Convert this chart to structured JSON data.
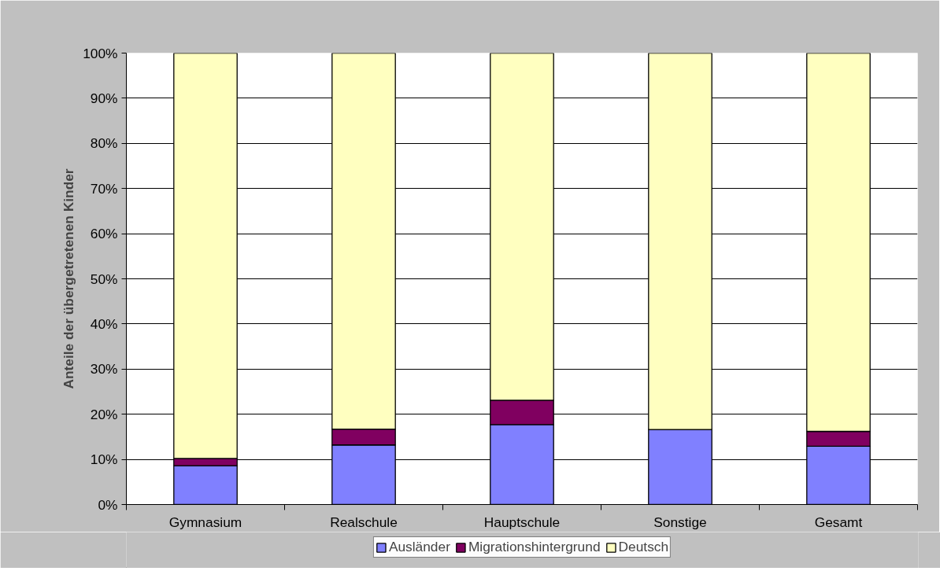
{
  "chart_data": {
    "type": "bar",
    "stacked": true,
    "ylabel": "Anteile der übergetretenen Kinder",
    "categories": [
      "Gymnasium",
      "Realschule",
      "Hauptschule",
      "Sonstige",
      "Gesamt"
    ],
    "series": [
      {
        "name": "Ausländer",
        "color": "#8080ff",
        "values": [
          8.6,
          13.2,
          17.7,
          16.6,
          12.9
        ]
      },
      {
        "name": "Migrationshintergrund",
        "color": "#800060",
        "values": [
          1.6,
          3.5,
          5.4,
          0,
          3.3
        ]
      },
      {
        "name": "Deutsch",
        "color": "#ffffc0",
        "values": [
          89.8,
          83.3,
          76.9,
          83.4,
          83.8
        ]
      }
    ],
    "ylim": [
      0,
      100
    ],
    "yticks": [
      {
        "value": 0,
        "label": "0%"
      },
      {
        "value": 10,
        "label": "10%"
      },
      {
        "value": 20,
        "label": "20%"
      },
      {
        "value": 30,
        "label": "30%"
      },
      {
        "value": 40,
        "label": "40%"
      },
      {
        "value": 50,
        "label": "50%"
      },
      {
        "value": 60,
        "label": "60%"
      },
      {
        "value": 70,
        "label": "70%"
      },
      {
        "value": 80,
        "label": "80%"
      },
      {
        "value": 90,
        "label": "90%"
      },
      {
        "value": 100,
        "label": "100%"
      }
    ],
    "grid": "y",
    "legend": "bottom"
  }
}
